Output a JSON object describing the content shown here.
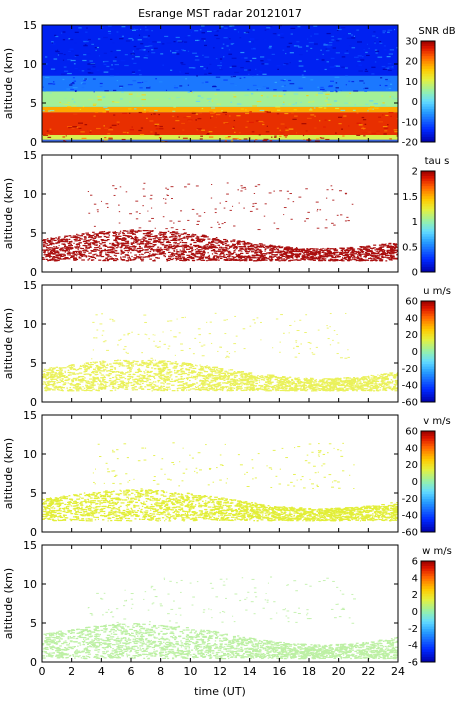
{
  "title": "Esrange MST radar 20121017",
  "xlabel": "time (UT)",
  "x_ticks": [
    "0",
    "2",
    "4",
    "6",
    "8",
    "10",
    "12",
    "14",
    "16",
    "18",
    "20",
    "22",
    "24"
  ],
  "colors": {
    "background": "#ffffff",
    "snr_background": "#3b63d6",
    "tau_echo": "#aa0e0e",
    "u_echo": "#eaf15a",
    "v_echo": "#e2ee38",
    "w_echo": "#bdf0a4"
  },
  "chart_data": [
    {
      "type": "heatmap",
      "ylabel": "altitude (km)",
      "colorbar_label": "SNR dB",
      "x_range": [
        0,
        24
      ],
      "ylim": [
        0,
        15
      ],
      "y_ticks": [
        "0",
        "5",
        "10",
        "15"
      ],
      "colorbar_range": [
        -20,
        30
      ],
      "colorbar_ticks": [
        "30",
        "20",
        "10",
        "0",
        "-10",
        "-20"
      ],
      "layers": [
        {
          "altitude": [
            0.3,
            0.9
          ],
          "level_db": 10
        },
        {
          "altitude": [
            0.9,
            3.8
          ],
          "level_db": 25
        },
        {
          "altitude": [
            3.8,
            4.5
          ],
          "level_db": 18
        },
        {
          "altitude": [
            4.5,
            6.5
          ],
          "level_db": 6
        },
        {
          "altitude": [
            6.5,
            8.5
          ],
          "level_db": -8
        },
        {
          "altitude": [
            8.5,
            15
          ],
          "level_db": -15
        }
      ]
    },
    {
      "type": "heatmap",
      "ylabel": "altitude (km)",
      "colorbar_label": "tau s",
      "x_range": [
        0,
        24
      ],
      "ylim": [
        0,
        15
      ],
      "y_ticks": [
        "0",
        "5",
        "10",
        "15"
      ],
      "colorbar_range": [
        0,
        2
      ],
      "colorbar_ticks": [
        "2",
        "1.5",
        "1",
        "0.5",
        "0"
      ],
      "echo_region_km": [
        1.5,
        5.5
      ],
      "echo_value": 2
    },
    {
      "type": "heatmap",
      "ylabel": "altitude (km)",
      "colorbar_label": "u m/s",
      "x_range": [
        0,
        24
      ],
      "ylim": [
        0,
        15
      ],
      "y_ticks": [
        "0",
        "5",
        "10",
        "15"
      ],
      "colorbar_range": [
        -60,
        60
      ],
      "colorbar_ticks": [
        "60",
        "40",
        "20",
        "0",
        "-20",
        "-40",
        "-60"
      ],
      "echo_region_km": [
        1.5,
        5.5
      ],
      "echo_value": 10
    },
    {
      "type": "heatmap",
      "ylabel": "altitude (km)",
      "colorbar_label": "v m/s",
      "x_range": [
        0,
        24
      ],
      "ylim": [
        0,
        15
      ],
      "y_ticks": [
        "0",
        "5",
        "10",
        "15"
      ],
      "colorbar_range": [
        -60,
        60
      ],
      "colorbar_ticks": [
        "60",
        "40",
        "20",
        "0",
        "-20",
        "-40",
        "-60"
      ],
      "echo_region_km": [
        1.5,
        5.5
      ],
      "echo_value": 12
    },
    {
      "type": "heatmap",
      "ylabel": "altitude (km)",
      "colorbar_label": "w m/s",
      "x_range": [
        0,
        24
      ],
      "ylim": [
        0,
        15
      ],
      "y_ticks": [
        "0",
        "5",
        "10",
        "15"
      ],
      "colorbar_range": [
        -6,
        6
      ],
      "colorbar_ticks": [
        "6",
        "4",
        "2",
        "0",
        "-2",
        "-4",
        "-6"
      ],
      "echo_region_km": [
        0.5,
        5.0
      ],
      "echo_value": 0
    }
  ]
}
